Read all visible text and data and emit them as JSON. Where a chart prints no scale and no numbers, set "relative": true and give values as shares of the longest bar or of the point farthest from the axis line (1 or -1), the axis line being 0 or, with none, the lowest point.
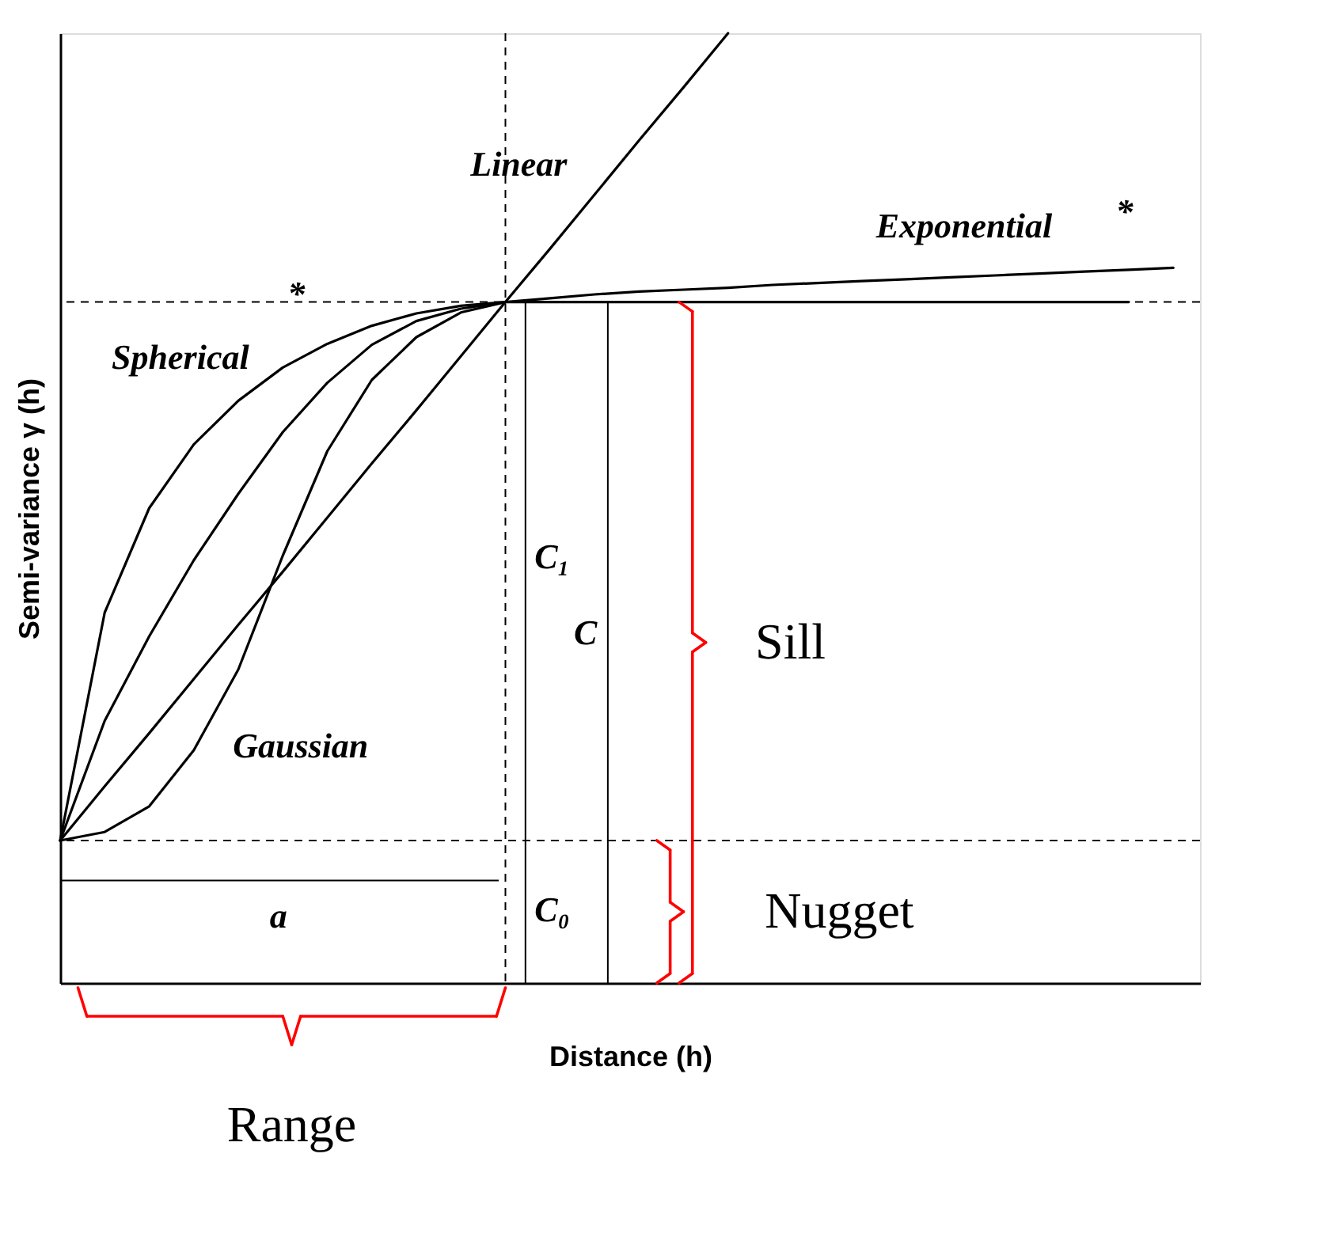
{
  "chart_data": {
    "type": "line",
    "relative": true,
    "xlabel": "Distance (h)",
    "ylabel": "Semi-variance γ (h)",
    "tick_labels": false,
    "marker": "none",
    "categories": [
      null,
      null,
      null,
      null,
      null,
      null,
      null,
      null,
      null,
      null,
      null,
      null,
      null,
      null,
      null,
      null,
      null,
      null,
      null,
      null,
      null,
      null,
      null,
      null,
      null,
      null
    ],
    "series": [
      {
        "color": "#000000",
        "values": [
          0.15,
          0.207,
          0.263,
          0.32,
          0.377,
          0.433,
          0.49,
          0.547,
          0.603,
          0.66,
          0.717,
          0.773,
          0.83,
          0.887,
          0.943,
          1.0,
          null,
          null,
          null,
          null,
          null,
          null,
          null,
          null,
          null,
          null
        ]
      },
      {
        "color": "#000000",
        "values": [
          0.15,
          0.276,
          0.365,
          0.445,
          0.515,
          0.58,
          0.632,
          0.672,
          0.697,
          0.71,
          0.717,
          0.721,
          0.725,
          0.728,
          0.73,
          0.732,
          0.735,
          0.737,
          0.739,
          0.741,
          0.743,
          0.745,
          0.747,
          0.749,
          0.751,
          0.753
        ]
      },
      {
        "color": "#000000",
        "values": [
          0.15,
          0.39,
          0.5,
          0.567,
          0.613,
          0.648,
          0.673,
          0.692,
          0.705,
          0.713,
          0.717,
          0.717,
          0.717,
          0.717,
          0.717,
          0.717,
          0.717,
          0.717,
          0.717,
          0.717,
          0.717,
          0.717,
          0.717,
          0.717,
          0.717,
          null
        ]
      },
      {
        "color": "#000000",
        "values": [
          0.15,
          0.159,
          0.186,
          0.245,
          0.33,
          0.45,
          0.56,
          0.635,
          0.68,
          0.706,
          0.717,
          null,
          null,
          null,
          null,
          null,
          null,
          null,
          null,
          null,
          null,
          null,
          null,
          null,
          null,
          null
        ]
      }
    ],
    "ref_lines": [
      {
        "axis": "y",
        "value": 0.15,
        "line_style": "dashed",
        "color": "#000000"
      },
      {
        "axis": "y",
        "value": 0.717,
        "line_style": "dashed",
        "color": "#000000"
      },
      {
        "axis": "x",
        "line_style": "dashed",
        "color": "#000000"
      }
    ],
    "annotations": [
      "Linear",
      "Exponential",
      "*",
      "Spherical",
      "*",
      "Gaussian",
      "C₁",
      "C",
      "C₀",
      "a",
      "Sill",
      "Nugget",
      "Range"
    ]
  }
}
